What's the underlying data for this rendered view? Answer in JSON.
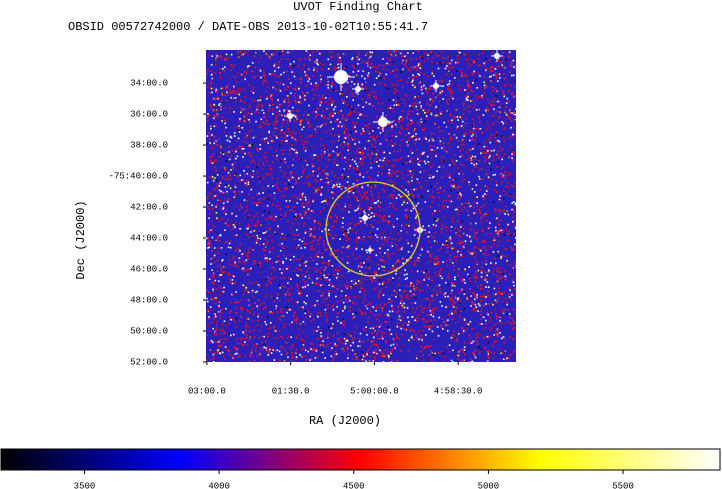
{
  "chart_data": {
    "type": "image",
    "title": "UVOT Finding Chart",
    "subtitle": "OBSID 00572742000 / DATE-OBS 2013-10-02T10:55:41.7",
    "x_label": "RA (J2000)",
    "y_label": "Dec (J2000)",
    "xlim": [
      75.754,
      74.366
    ],
    "xticks": [
      {
        "value": 75.75,
        "label": "03:00.0"
      },
      {
        "value": 75.375,
        "label": "01:30.0"
      },
      {
        "value": 75.0,
        "label": "5:00:00.0"
      },
      {
        "value": 74.625,
        "label": "4:58:30.0"
      }
    ],
    "ylim": [
      -75.8667,
      -75.5311
    ],
    "yticks": [
      {
        "value": -75.56667,
        "label": "34:00.0"
      },
      {
        "value": -75.6,
        "label": "36:00.0"
      },
      {
        "value": -75.63333,
        "label": "38:00.0"
      },
      {
        "value": -75.66667,
        "label": "-75:40:00.0"
      },
      {
        "value": -75.7,
        "label": "42:00.0"
      },
      {
        "value": -75.73333,
        "label": "44:00.0"
      },
      {
        "value": -75.76667,
        "label": "46:00.0"
      },
      {
        "value": -75.8,
        "label": "48:00.0"
      },
      {
        "value": -75.83333,
        "label": "50:00.0"
      },
      {
        "value": -75.86667,
        "label": "52:00.0"
      }
    ],
    "colorbar": {
      "lim": [
        3190,
        5860
      ],
      "ticks": [
        3500,
        4000,
        4500,
        5000,
        5500
      ],
      "colors": [
        "#000000",
        "#0000ff",
        "#ff0000",
        "#ffff00",
        "#ffffff"
      ]
    }
  }
}
